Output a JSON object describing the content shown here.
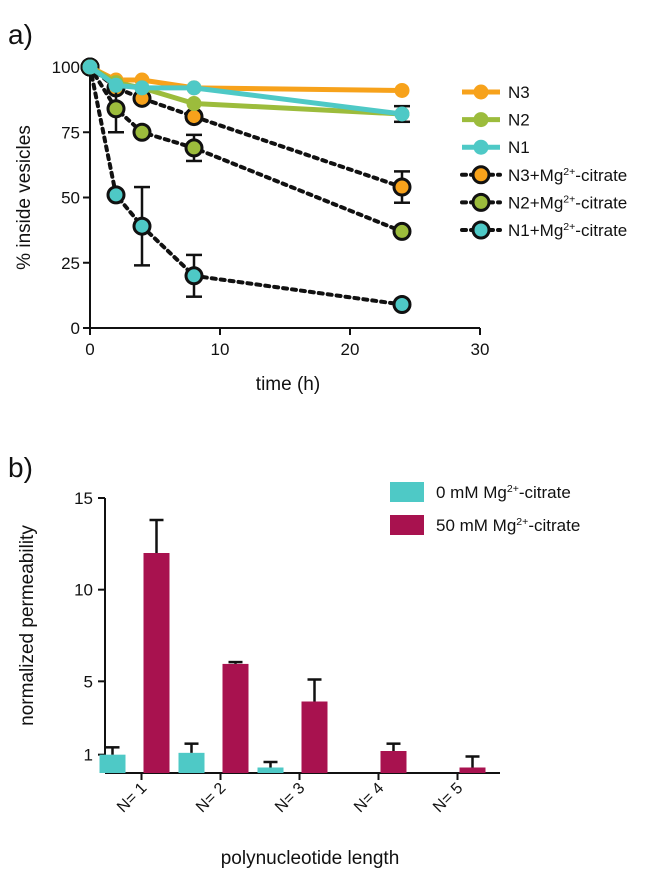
{
  "chart_data": [
    {
      "panel": "a)",
      "type": "line",
      "xlabel": "time (h)",
      "ylabel": "% inside vesicles",
      "xlim": [
        0,
        30
      ],
      "ylim": [
        0,
        100
      ],
      "xticks": [
        0,
        10,
        20,
        30
      ],
      "yticks": [
        0,
        25,
        50,
        75,
        100
      ],
      "x": [
        0,
        2,
        4,
        8,
        24
      ],
      "legend_position": "right",
      "series": [
        {
          "name": "N3",
          "style": "solid",
          "color": "#f7a21b",
          "marker_edge": "#f7a21b",
          "values": [
            100,
            95,
            95,
            92,
            91
          ],
          "errors": [
            0,
            0,
            0,
            0,
            0
          ]
        },
        {
          "name": "N2",
          "style": "solid",
          "color": "#9cbc3c",
          "marker_edge": "#9cbc3c",
          "values": [
            100,
            94,
            92,
            86,
            82
          ],
          "errors": [
            0,
            0,
            0,
            0,
            0
          ]
        },
        {
          "name": "N1",
          "style": "solid",
          "color": "#4ec9c6",
          "marker_edge": "#4ec9c6",
          "values": [
            100,
            93,
            92,
            92,
            82
          ],
          "errors": [
            0,
            0,
            0,
            0,
            3
          ]
        },
        {
          "name": "N3+Mg²⁺-citrate",
          "style": "dotted",
          "color": "#f7a21b",
          "marker_edge": "#111111",
          "values": [
            100,
            92,
            88,
            81,
            54
          ],
          "errors": [
            0,
            0,
            0,
            0,
            6
          ]
        },
        {
          "name": "N2+Mg²⁺-citrate",
          "style": "dotted",
          "color": "#9cbc3c",
          "marker_edge": "#111111",
          "values": [
            100,
            84,
            75,
            69,
            37
          ],
          "errors": [
            0,
            9,
            0,
            5,
            0
          ]
        },
        {
          "name": "N1+Mg²⁺-citrate",
          "style": "dotted",
          "color": "#4ec9c6",
          "marker_edge": "#111111",
          "values": [
            100,
            51,
            39,
            20,
            9
          ],
          "errors": [
            0,
            0,
            15,
            8,
            0
          ]
        }
      ]
    },
    {
      "panel": "b)",
      "type": "bar",
      "xlabel": "polynucleotide length",
      "ylabel": "normalized permeability",
      "ylim": [
        0,
        15
      ],
      "yticks": [
        1,
        5,
        10,
        15
      ],
      "categories": [
        "N= 1",
        "N= 2",
        "N= 3",
        "N= 4",
        "N= 5"
      ],
      "legend_position": "top-right",
      "series": [
        {
          "name": "0 mM Mg²⁺-citrate",
          "color": "#4ec9c6",
          "values": [
            1.0,
            1.1,
            0.3,
            null,
            null
          ],
          "errors": [
            0.4,
            0.5,
            0.3,
            null,
            null
          ]
        },
        {
          "name": "50 mM Mg²⁺-citrate",
          "color": "#a8124f",
          "values": [
            12.0,
            5.95,
            3.9,
            1.2,
            0.3
          ],
          "errors": [
            1.8,
            0.1,
            1.2,
            0.4,
            0.6
          ]
        }
      ]
    }
  ]
}
